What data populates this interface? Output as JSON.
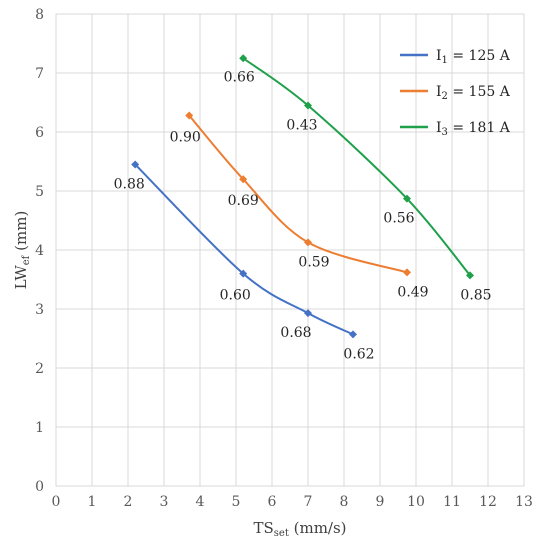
{
  "chart_data": {
    "type": "line",
    "xlabel": {
      "main": "TS",
      "sub": "set",
      "rest": " (mm/s)"
    },
    "ylabel": {
      "main": "LW",
      "sub": "ef",
      "rest": " (mm)"
    },
    "xlim": [
      0,
      13
    ],
    "ylim": [
      0,
      8
    ],
    "xticks": [
      "0",
      "1",
      "2",
      "3",
      "4",
      "5",
      "6",
      "7",
      "8",
      "9",
      "10",
      "11",
      "12",
      "13"
    ],
    "yticks": [
      "0",
      "1",
      "2",
      "3",
      "4",
      "5",
      "6",
      "7",
      "8"
    ],
    "grid": true,
    "legend_position": "top-right",
    "series": [
      {
        "legend_main": "I",
        "legend_sub": "1",
        "legend_rest": " = 125 A",
        "color": "#4472C4",
        "points": [
          {
            "x": 2.2,
            "y": 5.45,
            "label": "0.88"
          },
          {
            "x": 5.2,
            "y": 3.6,
            "label": "0.60"
          },
          {
            "x": 7.0,
            "y": 2.93,
            "label": "0.68"
          },
          {
            "x": 8.25,
            "y": 2.57,
            "label": "0.62"
          }
        ]
      },
      {
        "legend_main": "I",
        "legend_sub": "2",
        "legend_rest": " = 155 A",
        "color": "#ED7D31",
        "points": [
          {
            "x": 3.7,
            "y": 6.28,
            "label": "0.90"
          },
          {
            "x": 5.2,
            "y": 5.2,
            "label": "0.69"
          },
          {
            "x": 7.0,
            "y": 4.13,
            "label": "0.59"
          },
          {
            "x": 9.75,
            "y": 3.62,
            "label": "0.49"
          }
        ]
      },
      {
        "legend_main": "I",
        "legend_sub": "3",
        "legend_rest": " = 181 A",
        "color": "#1FA04A",
        "points": [
          {
            "x": 5.2,
            "y": 7.25,
            "label": "0.66"
          },
          {
            "x": 7.0,
            "y": 6.45,
            "label": "0.43"
          },
          {
            "x": 9.75,
            "y": 4.87,
            "label": "0.56"
          },
          {
            "x": 11.5,
            "y": 3.57,
            "label": "0.85"
          }
        ]
      }
    ]
  }
}
